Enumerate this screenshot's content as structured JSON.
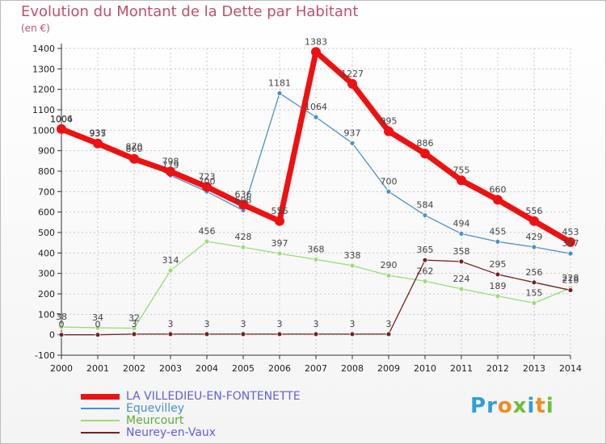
{
  "title": "Evolution du Montant de la Dette par Habitant",
  "unit": "(en €)",
  "logo": {
    "text": "Proxiti",
    "letters": [
      "P",
      "r",
      "o",
      "x",
      "i",
      "t",
      "i"
    ],
    "colors": [
      "#2f9fd8",
      "#2f9fd8",
      "#f28c1e",
      "#6cbf3b",
      "#2f9fd8",
      "#f28c1e",
      "#6cbf3b"
    ]
  },
  "chart_data": {
    "type": "line",
    "x": [
      "2000",
      "2001",
      "2002",
      "2003",
      "2004",
      "2005",
      "2006",
      "2007",
      "2008",
      "2009",
      "2010",
      "2011",
      "2012",
      "2013",
      "2014"
    ],
    "ylim": [
      -100,
      1400
    ],
    "yticks": [
      "-100",
      "0",
      "100",
      "200",
      "300",
      "400",
      "500",
      "600",
      "700",
      "800",
      "900",
      "1000",
      "1100",
      "1200",
      "1300",
      "1400"
    ],
    "grid": true,
    "series": [
      {
        "name": "LA VILLEDIEU-EN-FONTENETTE",
        "color": "#ee1111",
        "values": [
          1006,
          935,
          860,
          798,
          723,
          636,
          556,
          1383,
          1227,
          995,
          886,
          755,
          660,
          556,
          453
        ],
        "labels": [
          "1006",
          "935",
          "860",
          "798",
          "723",
          "636",
          "556",
          "1383",
          "1227",
          "995",
          "886",
          "755",
          "660",
          "556",
          "453"
        ]
      },
      {
        "name": "Equevilley",
        "color": "#4a90d0",
        "values": [
          1004,
          937,
          870,
          779,
          700,
          608,
          1181,
          1064,
          937,
          700,
          584,
          494,
          455,
          429,
          397
        ],
        "labels": [
          "1004",
          "937",
          "870",
          "779",
          "700",
          "608",
          "1181",
          "1064",
          "937",
          "700",
          "584",
          "494",
          "455",
          "429",
          "397"
        ]
      },
      {
        "name": "Meurcourt",
        "color": "#99dd77",
        "values": [
          38,
          34,
          32,
          314,
          456,
          428,
          397,
          368,
          338,
          290,
          262,
          224,
          189,
          155,
          228
        ],
        "labels": [
          "38",
          "34",
          "32",
          "314",
          "456",
          "428",
          "397",
          "368",
          "338",
          "290",
          "262",
          "224",
          "189",
          "155",
          "228"
        ]
      },
      {
        "name": "Neurey-en-Vaux",
        "color": "#772222",
        "values": [
          0,
          0,
          3,
          3,
          3,
          3,
          3,
          3,
          3,
          3,
          365,
          358,
          295,
          256,
          218
        ],
        "labels": [
          "0",
          "0",
          "3",
          "3",
          "3",
          "3",
          "3",
          "3",
          "3",
          "3",
          "365",
          "358",
          "295",
          "256",
          "218"
        ]
      }
    ]
  }
}
